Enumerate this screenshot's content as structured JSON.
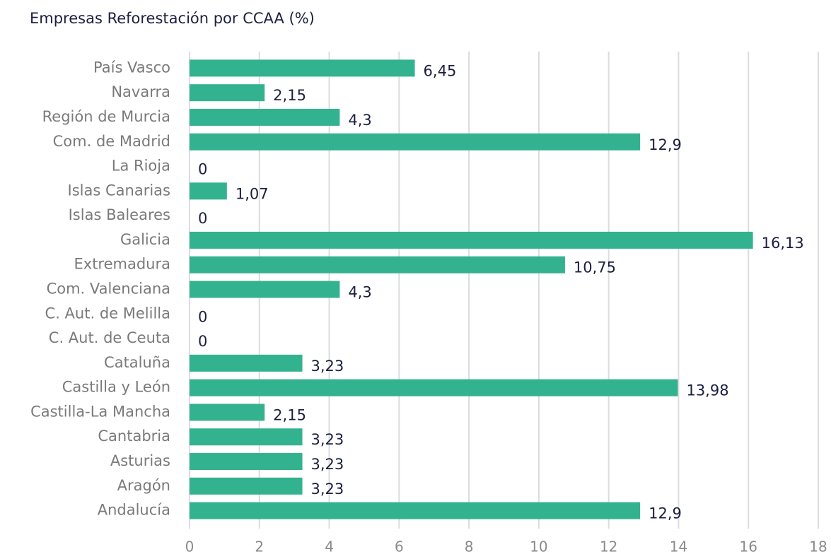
{
  "chart_data": {
    "type": "barh",
    "title": "Empresas Reforestación por CCAA (%)",
    "categories": [
      "País Vasco",
      "Navarra",
      "Región de Murcia",
      "Com. de Madrid",
      "La Rioja",
      "Islas Canarias",
      "Islas Baleares",
      "Galicia",
      "Extremadura",
      "Com. Valenciana",
      "C. Aut. de Melilla",
      "C. Aut. de Ceuta",
      "Cataluña",
      "Castilla y León",
      "Castilla-La Mancha",
      "Cantabria",
      "Asturias",
      "Aragón",
      "Andalucía"
    ],
    "values": [
      6.45,
      2.15,
      4.3,
      12.9,
      0,
      1.07,
      0,
      16.13,
      10.75,
      4.3,
      0,
      0,
      3.23,
      13.98,
      2.15,
      3.23,
      3.23,
      3.23,
      12.9
    ],
    "value_labels": [
      "6,45",
      "2,15",
      "4,3",
      "12,9",
      "0",
      "1,07",
      "0",
      "16,13",
      "10,75",
      "4,3",
      "0",
      "0",
      "3,23",
      "13,98",
      "2,15",
      "3,23",
      "3,23",
      "3,23",
      "12,9"
    ],
    "color": "#33b28f",
    "xlim": [
      0,
      18
    ],
    "xticks": [
      0,
      2,
      4,
      6,
      8,
      10,
      12,
      14,
      16,
      18
    ],
    "grid": true
  }
}
